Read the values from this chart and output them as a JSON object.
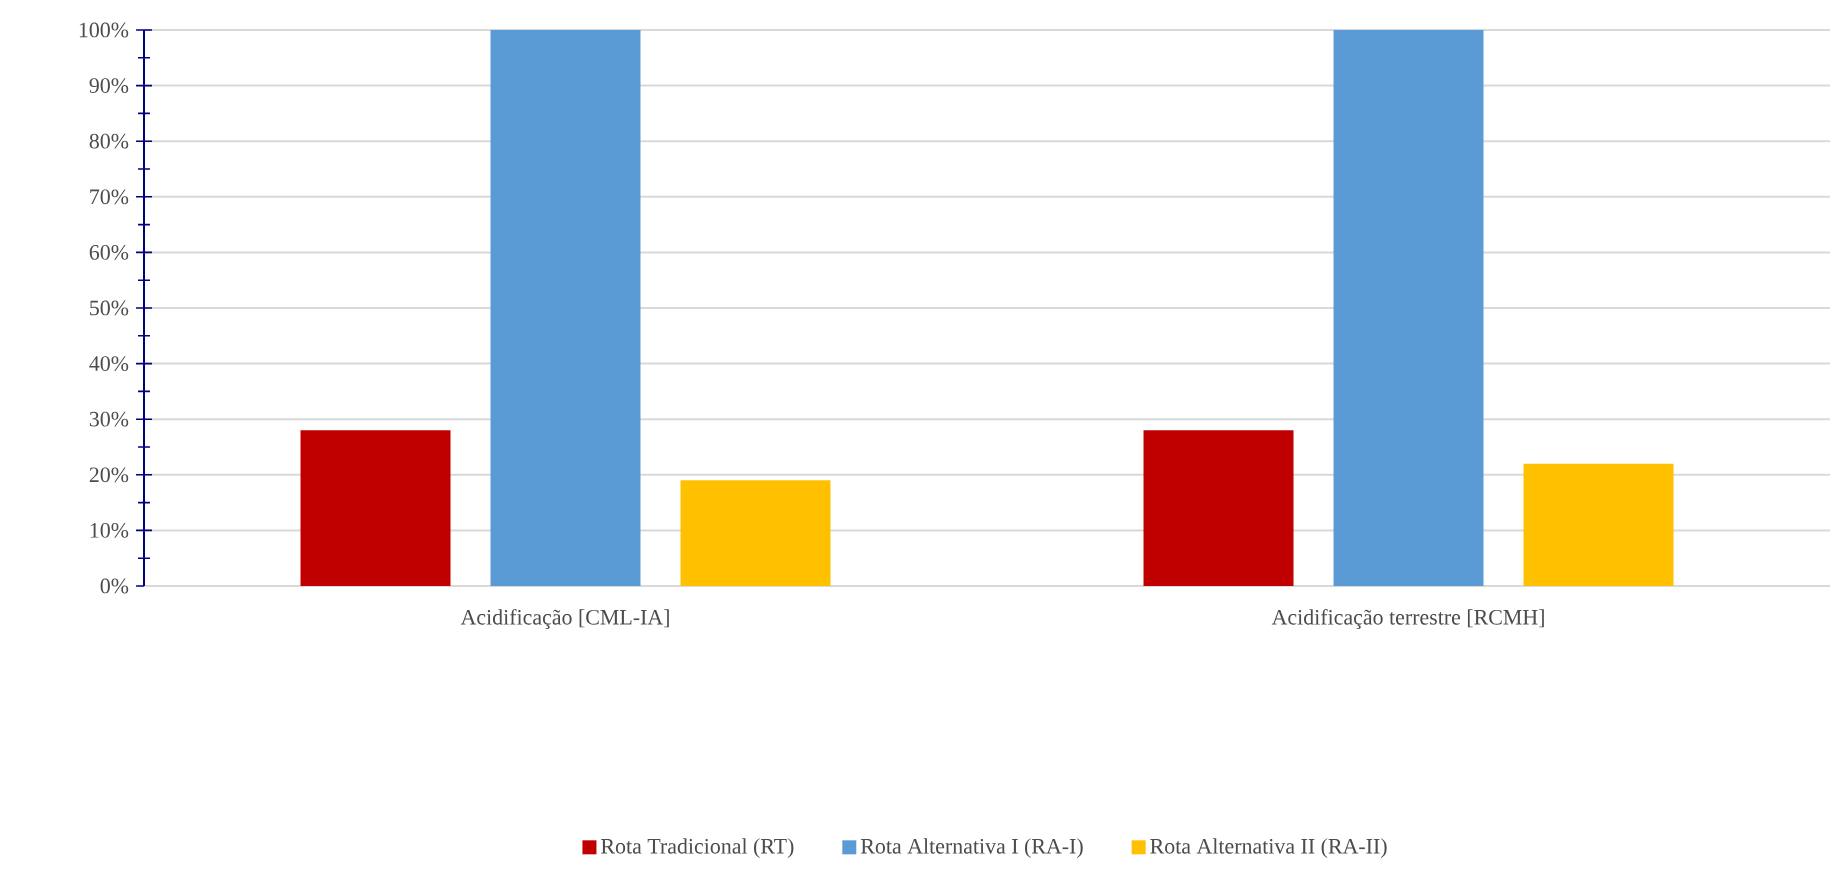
{
  "chart_data": {
    "type": "bar",
    "categories": [
      "Acidificação [CML-IA]",
      "Acidificação terrestre [RCMH]"
    ],
    "series": [
      {
        "name": "Rota Tradicional (RT)",
        "color": "#c00000",
        "values": [
          28,
          28
        ]
      },
      {
        "name": "Rota Alternativa I (RA-I)",
        "color": "#5b9bd5",
        "values": [
          100,
          100
        ]
      },
      {
        "name": "Rota Alternativa II (RA-II)",
        "color": "#ffc000",
        "values": [
          19,
          22
        ]
      }
    ],
    "ylim": [
      0,
      100
    ],
    "yticks": [
      {
        "value": 0,
        "label": "0%"
      },
      {
        "value": 10,
        "label": "10%"
      },
      {
        "value": 20,
        "label": "20%"
      },
      {
        "value": 30,
        "label": "30%"
      },
      {
        "value": 40,
        "label": "40%"
      },
      {
        "value": 50,
        "label": "50%"
      },
      {
        "value": 60,
        "label": "60%"
      },
      {
        "value": 70,
        "label": "70%"
      },
      {
        "value": 80,
        "label": "80%"
      },
      {
        "value": 90,
        "label": "90%"
      },
      {
        "value": 100,
        "label": "100%"
      }
    ],
    "grid": "y",
    "legend": "bottom"
  }
}
